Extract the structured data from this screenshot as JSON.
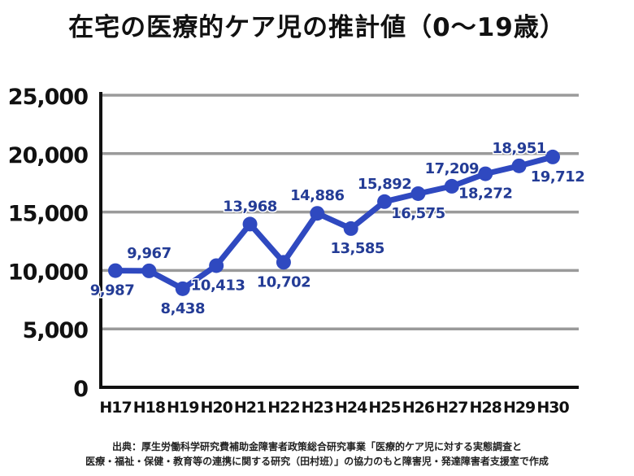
{
  "title": "在宅の医療的ケア児の推計値（0〜19歳）",
  "chart_data": {
    "type": "line",
    "title": "在宅の医療的ケア児の推計値（0〜19歳）",
    "categories": [
      "H17",
      "H18",
      "H19",
      "H20",
      "H21",
      "H22",
      "H23",
      "H24",
      "H25",
      "H26",
      "H27",
      "H28",
      "H29",
      "H30"
    ],
    "values": [
      9987,
      9967,
      8438,
      10413,
      13968,
      10702,
      14886,
      13585,
      15892,
      16575,
      17209,
      18272,
      18951,
      19712
    ],
    "data_labels": [
      "9,987",
      "9,967",
      "8,438",
      "10,413",
      "13,968",
      "10,702",
      "14,886",
      "13,585",
      "15,892",
      "16,575",
      "17,209",
      "18,272",
      "18,951",
      "19,712"
    ],
    "y_ticks": [
      0,
      5000,
      10000,
      15000,
      20000,
      25000
    ],
    "y_tick_labels": [
      "0",
      "5,000",
      "10,000",
      "15,000",
      "20,000",
      "25,000"
    ],
    "ylim": [
      0,
      25000
    ],
    "xlabel": "",
    "ylabel": "",
    "grid": true,
    "colors": {
      "line": "#2f49c0",
      "marker": "#2f49c0",
      "label": "#243c96",
      "grid": "#9a9a9a",
      "axis": "#111111"
    }
  },
  "source": {
    "line1": "出典：厚生労働科学研究費補助金障害者政策総合研究事業「医療的ケア児に対する実態調査と",
    "line2": "医療・福祉・保健・教育等の連携に関する研究（田村班）」の協力のもと障害児・発達障害者支援室で作成"
  }
}
